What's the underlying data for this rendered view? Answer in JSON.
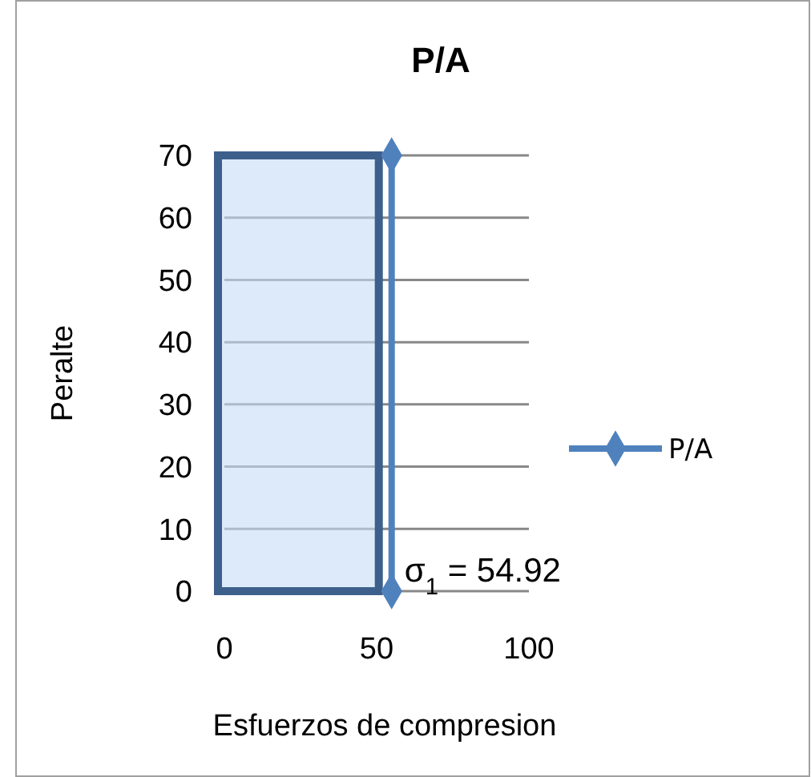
{
  "chart_data": {
    "type": "line",
    "title": "P/A",
    "xlabel": "Esfuerzos de compresion",
    "ylabel": "Peralte",
    "series": [
      {
        "name": "P/A",
        "color": "#4f81bd",
        "x": [
          54.92,
          54.92
        ],
        "values": [
          0,
          70
        ]
      }
    ],
    "xlim": [
      0,
      100
    ],
    "xticks": [
      0,
      50,
      100
    ],
    "ylim": [
      0,
      70
    ],
    "yticks": [
      0,
      10,
      20,
      30,
      40,
      50,
      60,
      70
    ],
    "grid": "y",
    "legend": "right",
    "marker": "diamond",
    "line_style": "solid",
    "annotations": [
      {
        "text": "σ$_{1}$ = 54.92",
        "x": 54.92,
        "y": 0
      }
    ]
  }
}
